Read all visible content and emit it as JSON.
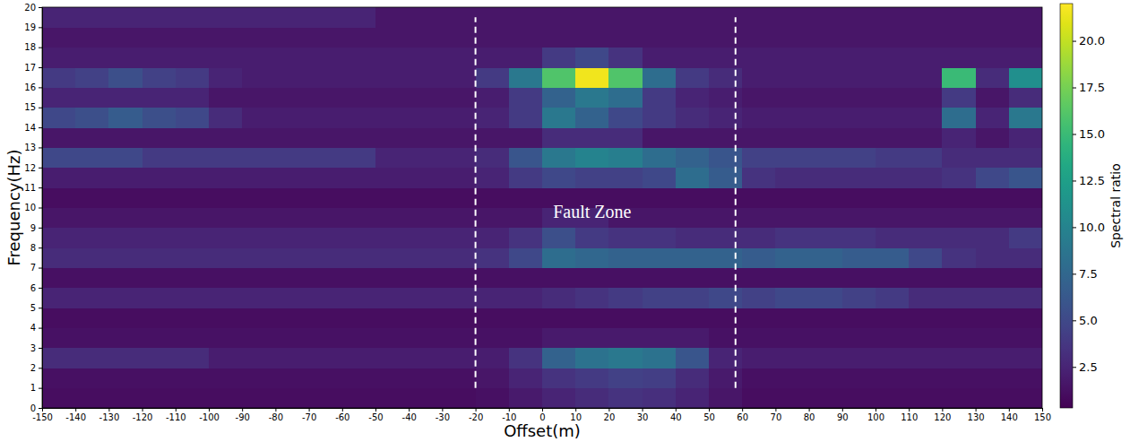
{
  "chart_data": {
    "type": "heatmap",
    "x_label": "Offset(m)",
    "y_label": "Frequency(Hz)",
    "xlim": [
      -150,
      150
    ],
    "ylim": [
      0,
      20
    ],
    "xticks": [
      -150,
      -140,
      -130,
      -120,
      -110,
      -100,
      -90,
      -80,
      -70,
      -60,
      -50,
      -40,
      -30,
      -20,
      -10,
      0,
      10,
      20,
      30,
      40,
      50,
      60,
      70,
      80,
      90,
      100,
      110,
      120,
      130,
      140,
      150
    ],
    "yticks": [
      0,
      1,
      2,
      3,
      4,
      5,
      6,
      7,
      8,
      9,
      10,
      11,
      12,
      13,
      14,
      15,
      16,
      17,
      18,
      19,
      20
    ],
    "x_edges": [
      -150,
      -140,
      -130,
      -120,
      -110,
      -100,
      -90,
      -80,
      -70,
      -60,
      -50,
      -40,
      -30,
      -20,
      -10,
      0,
      10,
      20,
      30,
      40,
      50,
      60,
      70,
      80,
      90,
      100,
      110,
      120,
      130,
      140,
      150
    ],
    "y_edges": [
      0,
      1,
      2,
      3,
      4,
      5,
      6,
      7,
      8,
      9,
      10,
      11,
      12,
      13,
      14,
      15,
      16,
      17,
      18,
      19,
      20
    ],
    "color": "viridis",
    "z": [
      [
        1.0,
        1.0,
        1.0,
        1.0,
        1.0,
        1.0,
        1.0,
        1.0,
        1.0,
        1.0,
        1.0,
        1.0,
        1.0,
        1.2,
        1.8,
        2.5,
        3.0,
        3.5,
        3.2,
        2.5,
        1.5,
        1.0,
        1.0,
        1.0,
        1.0,
        1.0,
        1.0,
        1.0,
        1.0,
        1.0
      ],
      [
        1.2,
        1.2,
        1.2,
        1.2,
        1.2,
        1.2,
        1.2,
        1.2,
        1.2,
        1.2,
        1.2,
        1.2,
        1.2,
        1.5,
        2.5,
        3.5,
        4.0,
        4.5,
        4.2,
        3.0,
        1.8,
        1.2,
        1.2,
        1.2,
        1.2,
        1.2,
        1.2,
        1.2,
        1.2,
        1.2
      ],
      [
        3.0,
        3.0,
        3.0,
        3.0,
        3.0,
        2.0,
        2.0,
        2.0,
        2.0,
        2.0,
        2.0,
        2.0,
        2.0,
        2.0,
        3.5,
        7.0,
        8.5,
        9.0,
        8.5,
        6.0,
        2.5,
        2.0,
        2.0,
        2.0,
        2.0,
        2.0,
        2.0,
        2.0,
        2.0,
        2.0
      ],
      [
        1.3,
        1.3,
        1.3,
        1.3,
        1.3,
        1.3,
        1.3,
        1.3,
        1.3,
        1.3,
        1.3,
        1.3,
        1.3,
        1.3,
        1.3,
        1.8,
        1.8,
        1.8,
        1.8,
        1.8,
        1.3,
        1.3,
        1.3,
        1.3,
        1.3,
        1.3,
        1.3,
        1.3,
        1.3,
        1.3
      ],
      [
        1.0,
        1.0,
        1.0,
        1.0,
        1.0,
        1.0,
        1.0,
        1.0,
        1.0,
        1.0,
        1.0,
        1.0,
        1.0,
        1.0,
        1.0,
        1.0,
        1.0,
        1.0,
        1.0,
        1.0,
        1.0,
        1.0,
        1.0,
        1.0,
        1.0,
        1.0,
        1.0,
        1.0,
        1.0,
        1.0
      ],
      [
        2.5,
        2.5,
        2.5,
        2.5,
        2.5,
        2.5,
        2.5,
        2.5,
        2.5,
        2.5,
        2.5,
        2.5,
        2.5,
        2.5,
        2.5,
        3.0,
        3.5,
        4.0,
        4.5,
        4.5,
        5.0,
        4.5,
        5.0,
        5.0,
        4.5,
        4.0,
        3.0,
        3.0,
        3.0,
        3.0
      ],
      [
        1.2,
        1.2,
        1.2,
        1.2,
        1.2,
        1.2,
        1.2,
        1.2,
        1.2,
        1.2,
        1.2,
        1.2,
        1.2,
        1.2,
        1.2,
        1.2,
        1.2,
        1.2,
        1.2,
        1.2,
        1.2,
        1.2,
        1.2,
        1.2,
        1.2,
        1.2,
        1.2,
        1.2,
        1.2,
        1.2
      ],
      [
        3.0,
        3.0,
        3.0,
        3.0,
        3.0,
        3.0,
        3.0,
        3.0,
        3.0,
        3.0,
        3.0,
        3.0,
        3.0,
        3.5,
        5.0,
        8.0,
        7.5,
        7.0,
        7.0,
        7.0,
        7.0,
        6.5,
        7.0,
        7.0,
        6.5,
        6.5,
        5.0,
        3.5,
        3.0,
        3.0
      ],
      [
        2.5,
        2.5,
        2.5,
        2.5,
        2.5,
        2.5,
        2.5,
        2.5,
        2.5,
        2.5,
        2.5,
        2.5,
        2.5,
        2.5,
        3.5,
        5.5,
        4.0,
        3.5,
        3.5,
        3.0,
        3.0,
        3.0,
        3.5,
        3.5,
        3.5,
        3.0,
        3.0,
        3.0,
        3.0,
        4.0
      ],
      [
        1.5,
        1.5,
        1.5,
        1.5,
        1.5,
        1.5,
        1.5,
        1.5,
        1.5,
        1.5,
        1.5,
        1.5,
        1.5,
        1.5,
        1.5,
        2.5,
        2.5,
        1.5,
        1.5,
        1.5,
        1.5,
        1.5,
        1.5,
        1.5,
        1.5,
        1.5,
        1.5,
        1.5,
        1.5,
        1.5
      ],
      [
        1.0,
        1.0,
        1.0,
        1.0,
        1.0,
        1.0,
        1.0,
        1.0,
        1.0,
        1.0,
        1.0,
        1.0,
        1.0,
        1.0,
        1.0,
        1.0,
        1.0,
        1.0,
        1.0,
        1.0,
        1.0,
        1.0,
        1.0,
        1.0,
        1.0,
        1.0,
        1.0,
        1.0,
        1.0,
        1.0
      ],
      [
        2.0,
        2.0,
        2.0,
        2.0,
        2.0,
        2.0,
        2.0,
        2.0,
        2.0,
        2.0,
        2.0,
        2.0,
        2.0,
        2.5,
        4.0,
        5.0,
        4.5,
        4.5,
        5.0,
        8.0,
        6.5,
        3.5,
        3.0,
        3.0,
        3.0,
        3.0,
        3.0,
        3.5,
        5.0,
        6.0
      ],
      [
        5.0,
        5.0,
        5.0,
        4.0,
        4.0,
        4.0,
        4.0,
        4.0,
        4.0,
        4.0,
        2.5,
        2.5,
        2.5,
        3.0,
        6.0,
        9.0,
        10.0,
        9.5,
        8.0,
        7.0,
        6.0,
        4.5,
        4.5,
        4.5,
        4.5,
        4.0,
        4.0,
        3.0,
        3.0,
        3.0
      ],
      [
        1.5,
        1.5,
        1.5,
        1.5,
        1.5,
        1.5,
        1.5,
        1.5,
        1.5,
        1.5,
        1.5,
        1.5,
        1.5,
        1.5,
        1.5,
        3.0,
        3.0,
        3.0,
        1.5,
        1.5,
        1.5,
        1.5,
        1.5,
        1.5,
        1.5,
        1.5,
        1.5,
        2.5,
        1.5,
        2.5
      ],
      [
        5.0,
        5.5,
        6.5,
        5.5,
        5.0,
        3.0,
        2.0,
        2.0,
        2.0,
        2.0,
        2.0,
        2.0,
        2.0,
        2.5,
        4.0,
        9.0,
        7.0,
        5.0,
        4.0,
        3.0,
        2.5,
        2.0,
        2.0,
        2.0,
        2.0,
        2.0,
        2.0,
        8.0,
        2.5,
        9.0
      ],
      [
        2.5,
        2.5,
        2.5,
        2.5,
        2.5,
        1.5,
        1.5,
        1.5,
        1.5,
        1.5,
        1.5,
        1.5,
        1.5,
        2.0,
        4.0,
        7.0,
        9.0,
        8.0,
        4.0,
        2.5,
        2.0,
        1.5,
        1.5,
        1.5,
        1.5,
        1.5,
        1.5,
        4.0,
        1.5,
        3.0
      ],
      [
        4.0,
        4.5,
        5.5,
        4.5,
        4.0,
        2.5,
        2.0,
        2.0,
        2.0,
        2.0,
        2.0,
        2.0,
        2.0,
        4.0,
        9.0,
        16.0,
        21.5,
        16.0,
        8.0,
        4.0,
        3.0,
        2.0,
        2.0,
        2.0,
        2.0,
        2.0,
        2.0,
        15.0,
        3.0,
        11.0
      ],
      [
        2.0,
        2.0,
        2.0,
        2.0,
        2.0,
        2.0,
        2.0,
        2.0,
        2.0,
        2.0,
        2.0,
        2.0,
        2.0,
        2.0,
        2.0,
        4.0,
        5.0,
        3.5,
        2.0,
        2.0,
        2.0,
        2.0,
        2.0,
        2.0,
        2.0,
        2.0,
        2.0,
        2.0,
        2.0,
        2.0
      ],
      [
        1.5,
        1.5,
        1.5,
        1.5,
        1.5,
        1.5,
        1.5,
        1.5,
        1.5,
        1.5,
        1.5,
        1.5,
        1.5,
        1.5,
        1.5,
        1.5,
        1.5,
        1.5,
        1.5,
        1.5,
        1.5,
        1.5,
        1.5,
        1.5,
        1.5,
        1.5,
        1.5,
        1.5,
        1.5,
        1.5
      ],
      [
        2.5,
        2.5,
        2.5,
        2.5,
        2.5,
        2.5,
        2.5,
        2.5,
        2.5,
        2.5,
        1.5,
        1.5,
        1.5,
        1.5,
        1.5,
        1.5,
        1.5,
        1.5,
        1.5,
        1.5,
        1.5,
        1.5,
        1.5,
        1.5,
        1.5,
        1.5,
        1.5,
        1.5,
        1.5,
        1.5
      ]
    ],
    "colorbar": {
      "label": "Spectral ratio",
      "range": [
        0.3,
        22
      ],
      "ticks": [
        2.5,
        {
          "value": 5,
          "label": "5.0"
        },
        7.5,
        {
          "value": 10,
          "label": "10.0"
        },
        12.5,
        {
          "value": 15,
          "label": "15.0"
        },
        17.5,
        {
          "value": 20,
          "label": "20.0"
        }
      ]
    },
    "annotations": [
      {
        "text": "Fault Zone",
        "x": 15,
        "y": 9.8
      }
    ],
    "shapes": [
      {
        "x": -20,
        "y0": 1,
        "y1": 19.5,
        "line_style": "dashed"
      },
      {
        "x": 58,
        "y0": 1,
        "y1": 19.5,
        "line_style": "dashed"
      }
    ]
  }
}
